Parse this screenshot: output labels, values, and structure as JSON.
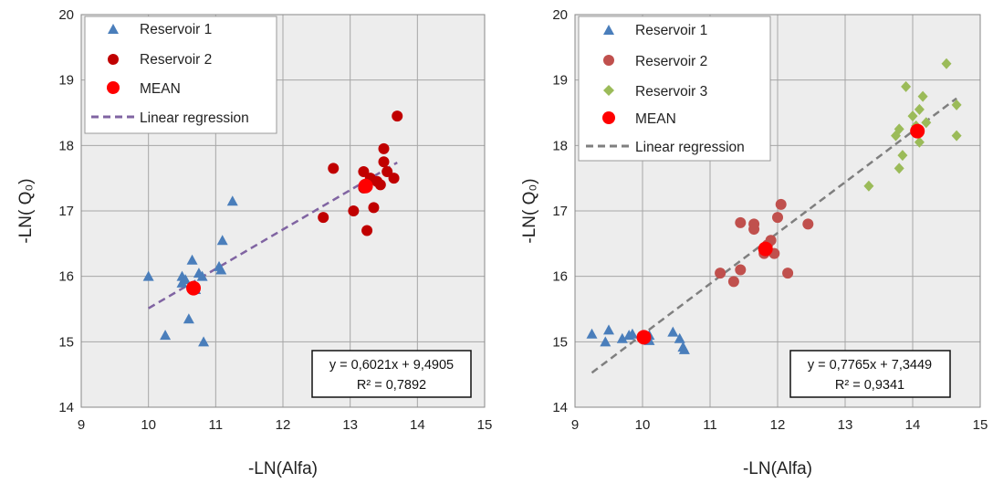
{
  "chart_data": [
    {
      "type": "scatter",
      "xlabel": "-LN(Alfa)",
      "ylabel": "-LN( Q₀)",
      "xlim": [
        9,
        15
      ],
      "ylim": [
        14,
        20
      ],
      "xticks": [
        "9",
        "10",
        "11",
        "12",
        "13",
        "14",
        "15"
      ],
      "yticks": [
        "14",
        "15",
        "16",
        "17",
        "18",
        "19",
        "20"
      ],
      "grid": true,
      "legend_position": "top-left",
      "series": [
        {
          "name": "Reservoir 1",
          "marker": "triangle",
          "color": "#4a7ebb",
          "points": [
            [
              10.0,
              16.0
            ],
            [
              10.25,
              15.1
            ],
            [
              10.5,
              16.0
            ],
            [
              10.5,
              15.9
            ],
            [
              10.55,
              15.95
            ],
            [
              10.6,
              15.35
            ],
            [
              10.65,
              16.25
            ],
            [
              10.7,
              15.8
            ],
            [
              10.75,
              16.05
            ],
            [
              10.8,
              16.0
            ],
            [
              10.82,
              15.0
            ],
            [
              11.05,
              16.15
            ],
            [
              11.08,
              16.1
            ],
            [
              11.1,
              16.55
            ],
            [
              11.25,
              17.15
            ]
          ]
        },
        {
          "name": "Reservoir 2",
          "marker": "circle",
          "color": "#c00000",
          "points": [
            [
              12.6,
              16.9
            ],
            [
              12.75,
              17.65
            ],
            [
              13.05,
              17.0
            ],
            [
              13.2,
              17.6
            ],
            [
              13.2,
              17.35
            ],
            [
              13.25,
              16.7
            ],
            [
              13.3,
              17.5
            ],
            [
              13.35,
              17.05
            ],
            [
              13.4,
              17.45
            ],
            [
              13.45,
              17.4
            ],
            [
              13.5,
              17.95
            ],
            [
              13.5,
              17.75
            ],
            [
              13.55,
              17.6
            ],
            [
              13.65,
              17.5
            ],
            [
              13.7,
              18.45
            ]
          ]
        },
        {
          "name": "MEAN",
          "marker": "circle-large",
          "color": "#ff0000",
          "points": [
            [
              10.67,
              15.82
            ],
            [
              13.23,
              17.38
            ]
          ]
        }
      ],
      "regression": {
        "name": "Linear regression",
        "slope": 0.6021,
        "intercept": 9.4905,
        "x_range": [
          10.0,
          13.7
        ],
        "color": "#8064a2"
      },
      "annotation": {
        "equation": "y = 0,6021x + 9,4905",
        "r2": "R² = 0,7892"
      }
    },
    {
      "type": "scatter",
      "xlabel": "-LN(Alfa)",
      "ylabel": "-LN( Q₀)",
      "xlim": [
        9,
        15
      ],
      "ylim": [
        14,
        20
      ],
      "xticks": [
        "9",
        "10",
        "11",
        "12",
        "13",
        "14",
        "15"
      ],
      "yticks": [
        "14",
        "15",
        "16",
        "17",
        "18",
        "19",
        "20"
      ],
      "grid": true,
      "legend_position": "top-left",
      "series": [
        {
          "name": "Reservoir 1",
          "marker": "triangle",
          "color": "#4a7ebb",
          "points": [
            [
              9.25,
              15.12
            ],
            [
              9.45,
              15.0
            ],
            [
              9.5,
              15.18
            ],
            [
              9.7,
              15.05
            ],
            [
              9.8,
              15.1
            ],
            [
              9.85,
              15.12
            ],
            [
              10.0,
              15.1
            ],
            [
              10.05,
              15.08
            ],
            [
              10.1,
              15.1
            ],
            [
              10.1,
              15.02
            ],
            [
              10.45,
              15.15
            ],
            [
              10.55,
              15.05
            ],
            [
              10.6,
              14.92
            ],
            [
              10.62,
              14.88
            ]
          ]
        },
        {
          "name": "Reservoir 2",
          "marker": "circle",
          "color": "#c0504d",
          "points": [
            [
              11.15,
              16.05
            ],
            [
              11.35,
              15.92
            ],
            [
              11.45,
              16.82
            ],
            [
              11.45,
              16.1
            ],
            [
              11.65,
              16.8
            ],
            [
              11.65,
              16.72
            ],
            [
              11.8,
              16.35
            ],
            [
              11.85,
              16.48
            ],
            [
              11.9,
              16.55
            ],
            [
              11.95,
              16.35
            ],
            [
              12.0,
              16.9
            ],
            [
              12.05,
              17.1
            ],
            [
              12.15,
              16.05
            ],
            [
              12.45,
              16.8
            ]
          ]
        },
        {
          "name": "Reservoir 3",
          "marker": "diamond",
          "color": "#9bbb59",
          "points": [
            [
              13.35,
              17.38
            ],
            [
              13.75,
              18.15
            ],
            [
              13.8,
              18.25
            ],
            [
              13.8,
              17.65
            ],
            [
              13.85,
              17.85
            ],
            [
              13.9,
              18.9
            ],
            [
              14.0,
              18.45
            ],
            [
              14.05,
              18.3
            ],
            [
              14.1,
              18.05
            ],
            [
              14.1,
              18.55
            ],
            [
              14.15,
              18.75
            ],
            [
              14.2,
              18.35
            ],
            [
              14.5,
              19.25
            ],
            [
              14.65,
              18.62
            ],
            [
              14.65,
              18.15
            ]
          ]
        },
        {
          "name": "MEAN",
          "marker": "circle-large",
          "color": "#ff0000",
          "points": [
            [
              10.02,
              15.07
            ],
            [
              11.82,
              16.42
            ],
            [
              14.07,
              18.22
            ]
          ]
        }
      ],
      "regression": {
        "name": "Linear regression",
        "slope": 0.7765,
        "intercept": 7.3449,
        "x_range": [
          9.25,
          14.65
        ],
        "color": "#7f7f7f"
      },
      "annotation": {
        "equation": "y = 0,7765x + 7,3449",
        "r2": "R² = 0,9341"
      }
    }
  ]
}
